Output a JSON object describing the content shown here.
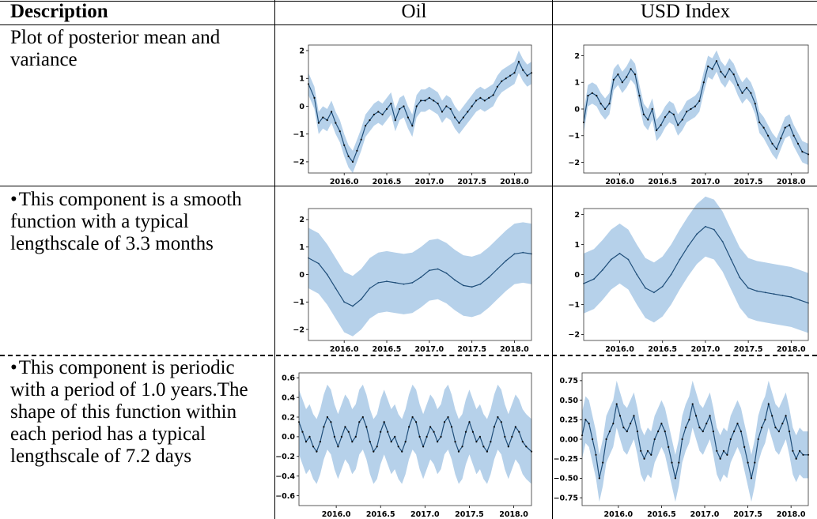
{
  "table": {
    "headers": [
      "Description",
      "Oil",
      "USD Index"
    ],
    "rows": [
      {
        "description": "Plot of posterior mean and variance",
        "bullet": false
      },
      {
        "description": "This component is a smooth function with a typical lengthscale of 3.3 months",
        "bullet": true
      },
      {
        "description": "This component is periodic with a period of 1.0 years.The shape of this function within each period has a typical lengthscale of 7.2 days",
        "bullet": true
      }
    ]
  },
  "colors": {
    "band": "#a9c9e6",
    "line": "#1f4e79",
    "points": "#0a0a0a"
  },
  "chart_data": [
    {
      "id": "oil-posterior",
      "type": "line",
      "panel": "Oil",
      "row": 1,
      "xlim": [
        2015.58,
        2018.2
      ],
      "ylim": [
        -2.4,
        2.2
      ],
      "xticks": [
        2016.0,
        2016.5,
        2017.0,
        2017.5,
        2018.0
      ],
      "xticklabels": [
        "2016.0",
        "2016.5",
        "2017.0",
        "2017.5",
        "2018.0"
      ],
      "yticks": [
        -2,
        -1,
        0,
        1,
        2
      ],
      "yticklabels": [
        "−2",
        "−1",
        "0",
        "1",
        "2"
      ],
      "band": 0.4,
      "has_points": true,
      "x": [
        2015.58,
        2015.65,
        2015.7,
        2015.75,
        2015.8,
        2015.85,
        2015.9,
        2015.95,
        2016.0,
        2016.05,
        2016.1,
        2016.15,
        2016.2,
        2016.25,
        2016.3,
        2016.35,
        2016.4,
        2016.45,
        2016.5,
        2016.55,
        2016.6,
        2016.65,
        2016.7,
        2016.75,
        2016.8,
        2016.85,
        2016.9,
        2016.95,
        2017.0,
        2017.05,
        2017.1,
        2017.15,
        2017.2,
        2017.25,
        2017.3,
        2017.35,
        2017.4,
        2017.45,
        2017.5,
        2017.55,
        2017.6,
        2017.65,
        2017.7,
        2017.75,
        2017.8,
        2017.85,
        2017.9,
        2017.95,
        2018.0,
        2018.05,
        2018.1,
        2018.15,
        2018.2
      ],
      "y": [
        0.8,
        0.3,
        -0.6,
        -0.4,
        -0.5,
        -0.2,
        -0.6,
        -0.9,
        -1.4,
        -1.8,
        -2.0,
        -1.6,
        -1.2,
        -0.7,
        -0.5,
        -0.3,
        -0.2,
        -0.3,
        -0.1,
        0.1,
        -0.5,
        -0.1,
        0.0,
        -0.4,
        -0.7,
        0.0,
        0.2,
        0.2,
        0.3,
        0.2,
        0.1,
        -0.2,
        0.0,
        -0.1,
        -0.4,
        -0.6,
        -0.4,
        -0.2,
        0.0,
        0.2,
        0.3,
        0.2,
        0.3,
        0.4,
        0.7,
        0.9,
        1.0,
        1.1,
        1.2,
        1.6,
        1.3,
        1.1,
        1.2
      ]
    },
    {
      "id": "usd-posterior",
      "type": "line",
      "panel": "USD Index",
      "row": 1,
      "xlim": [
        2015.58,
        2018.2
      ],
      "ylim": [
        -2.4,
        2.4
      ],
      "xticks": [
        2016.0,
        2016.5,
        2017.0,
        2017.5,
        2018.0
      ],
      "xticklabels": [
        "2016.0",
        "2016.5",
        "2017.0",
        "2017.5",
        "2018.0"
      ],
      "yticks": [
        -2,
        -1,
        0,
        1,
        2
      ],
      "yticklabels": [
        "−2",
        "−1",
        "0",
        "1",
        "2"
      ],
      "band": 0.4,
      "has_points": true,
      "x": [
        2015.58,
        2015.63,
        2015.68,
        2015.73,
        2015.78,
        2015.83,
        2015.88,
        2015.93,
        2015.98,
        2016.03,
        2016.08,
        2016.13,
        2016.18,
        2016.23,
        2016.28,
        2016.33,
        2016.38,
        2016.43,
        2016.48,
        2016.53,
        2016.58,
        2016.63,
        2016.68,
        2016.73,
        2016.78,
        2016.83,
        2016.88,
        2016.93,
        2016.98,
        2017.03,
        2017.08,
        2017.13,
        2017.18,
        2017.23,
        2017.28,
        2017.33,
        2017.38,
        2017.43,
        2017.48,
        2017.53,
        2017.58,
        2017.63,
        2017.68,
        2017.73,
        2017.78,
        2017.83,
        2017.88,
        2017.93,
        2017.98,
        2018.03,
        2018.08,
        2018.13,
        2018.2
      ],
      "y": [
        -0.5,
        0.5,
        0.6,
        0.5,
        0.2,
        0.0,
        0.2,
        1.1,
        1.3,
        1.0,
        1.2,
        1.5,
        1.3,
        0.5,
        -0.2,
        -0.4,
        0.0,
        -0.8,
        -0.6,
        -0.3,
        -0.1,
        -0.2,
        -0.6,
        -0.4,
        -0.1,
        0.0,
        0.1,
        0.3,
        1.0,
        1.6,
        1.5,
        1.8,
        1.4,
        1.2,
        1.5,
        1.3,
        0.9,
        0.6,
        0.8,
        0.6,
        0.2,
        -0.5,
        -0.7,
        -1.0,
        -1.3,
        -1.5,
        -1.1,
        -0.7,
        -0.6,
        -1.0,
        -1.3,
        -1.6,
        -1.7
      ]
    },
    {
      "id": "oil-smooth",
      "type": "line",
      "panel": "Oil",
      "row": 2,
      "xlim": [
        2015.58,
        2018.2
      ],
      "ylim": [
        -2.4,
        2.4
      ],
      "xticks": [
        2016.0,
        2016.5,
        2017.0,
        2017.5,
        2018.0
      ],
      "xticklabels": [
        "2016.0",
        "2016.5",
        "2017.0",
        "2017.5",
        "2018.0"
      ],
      "yticks": [
        -2,
        -1,
        0,
        1,
        2
      ],
      "yticklabels": [
        "−2",
        "−1",
        "0",
        "1",
        "2"
      ],
      "band": 1.1,
      "has_points": false,
      "x": [
        2015.58,
        2015.7,
        2015.8,
        2015.9,
        2016.0,
        2016.1,
        2016.2,
        2016.3,
        2016.4,
        2016.5,
        2016.6,
        2016.7,
        2016.8,
        2016.9,
        2017.0,
        2017.1,
        2017.2,
        2017.3,
        2017.4,
        2017.5,
        2017.6,
        2017.7,
        2017.8,
        2017.9,
        2018.0,
        2018.1,
        2018.2
      ],
      "y": [
        0.6,
        0.4,
        0.0,
        -0.5,
        -1.0,
        -1.15,
        -0.9,
        -0.5,
        -0.3,
        -0.25,
        -0.3,
        -0.35,
        -0.3,
        -0.1,
        0.15,
        0.2,
        0.05,
        -0.2,
        -0.4,
        -0.45,
        -0.35,
        -0.1,
        0.2,
        0.5,
        0.75,
        0.8,
        0.75
      ]
    },
    {
      "id": "usd-smooth",
      "type": "line",
      "panel": "USD Index",
      "row": 2,
      "xlim": [
        2015.58,
        2018.2
      ],
      "ylim": [
        -2.2,
        2.2
      ],
      "xticks": [
        2016.0,
        2016.5,
        2017.0,
        2017.5,
        2018.0
      ],
      "xticklabels": [
        "2016.0",
        "2016.5",
        "2017.0",
        "2017.5",
        "2018.0"
      ],
      "yticks": [
        -2,
        -1,
        0,
        1,
        2
      ],
      "yticklabels": [
        "−2",
        "−1",
        "0",
        "1",
        "2"
      ],
      "band": 1.0,
      "has_points": false,
      "x": [
        2015.58,
        2015.7,
        2015.8,
        2015.9,
        2016.0,
        2016.1,
        2016.2,
        2016.3,
        2016.4,
        2016.5,
        2016.6,
        2016.7,
        2016.8,
        2016.9,
        2017.0,
        2017.1,
        2017.2,
        2017.3,
        2017.4,
        2017.5,
        2017.6,
        2017.7,
        2017.8,
        2017.9,
        2018.0,
        2018.1,
        2018.2
      ],
      "y": [
        -0.3,
        -0.15,
        0.15,
        0.5,
        0.7,
        0.5,
        0.0,
        -0.45,
        -0.6,
        -0.4,
        0.0,
        0.5,
        0.95,
        1.35,
        1.6,
        1.5,
        1.1,
        0.5,
        -0.1,
        -0.45,
        -0.55,
        -0.6,
        -0.65,
        -0.7,
        -0.75,
        -0.85,
        -0.95
      ]
    },
    {
      "id": "oil-periodic",
      "type": "line",
      "panel": "Oil",
      "row": 3,
      "xlim": [
        2015.58,
        2018.2
      ],
      "ylim": [
        -0.7,
        0.65
      ],
      "xticks": [
        2016.0,
        2016.5,
        2017.0,
        2017.5,
        2018.0
      ],
      "xticklabels": [
        "2016.0",
        "2016.5",
        "2017.0",
        "2017.5",
        "2018.0"
      ],
      "yticks": [
        -0.6,
        -0.4,
        -0.2,
        0.0,
        0.2,
        0.4,
        0.6
      ],
      "yticklabels": [
        "−0.6",
        "−0.4",
        "−0.2",
        "0.0",
        "0.2",
        "0.4",
        "0.6"
      ],
      "band": 0.33,
      "has_points": true,
      "x": [
        2015.58,
        2015.62,
        2015.66,
        2015.7,
        2015.74,
        2015.78,
        2015.82,
        2015.86,
        2015.9,
        2015.94,
        2015.98,
        2016.02,
        2016.06,
        2016.1,
        2016.14,
        2016.18,
        2016.22,
        2016.26,
        2016.3,
        2016.34,
        2016.38,
        2016.42,
        2016.46,
        2016.5,
        2016.54,
        2016.58,
        2016.62,
        2016.66,
        2016.7,
        2016.74,
        2016.78,
        2016.82,
        2016.86,
        2016.9,
        2016.94,
        2016.98,
        2017.02,
        2017.06,
        2017.1,
        2017.14,
        2017.18,
        2017.22,
        2017.26,
        2017.3,
        2017.34,
        2017.38,
        2017.42,
        2017.46,
        2017.5,
        2017.54,
        2017.58,
        2017.62,
        2017.66,
        2017.7,
        2017.74,
        2017.78,
        2017.82,
        2017.86,
        2017.9,
        2017.94,
        2017.98,
        2018.02,
        2018.06,
        2018.1,
        2018.14,
        2018.2
      ],
      "y": [
        0.15,
        0.05,
        -0.05,
        0.0,
        -0.1,
        -0.15,
        -0.05,
        0.1,
        0.2,
        0.15,
        0.0,
        -0.1,
        0.0,
        0.1,
        0.05,
        -0.05,
        0.0,
        0.15,
        0.2,
        0.1,
        -0.05,
        -0.15,
        -0.1,
        0.05,
        0.15,
        0.05,
        -0.05,
        0.0,
        -0.1,
        -0.15,
        -0.05,
        0.1,
        0.2,
        0.15,
        0.0,
        -0.1,
        0.0,
        0.1,
        0.05,
        -0.05,
        0.0,
        0.15,
        0.2,
        0.1,
        -0.05,
        -0.15,
        -0.1,
        0.05,
        0.15,
        0.05,
        -0.05,
        0.0,
        -0.1,
        -0.15,
        -0.05,
        0.1,
        0.2,
        0.15,
        0.0,
        -0.1,
        0.0,
        0.1,
        0.05,
        -0.05,
        -0.1,
        -0.15
      ]
    },
    {
      "id": "usd-periodic",
      "type": "line",
      "panel": "USD Index",
      "row": 3,
      "xlim": [
        2015.58,
        2018.2
      ],
      "ylim": [
        -0.85,
        0.85
      ],
      "xticks": [
        2016.0,
        2016.5,
        2017.0,
        2017.5,
        2018.0
      ],
      "xticklabels": [
        "2016.0",
        "2016.5",
        "2017.0",
        "2017.5",
        "2018.0"
      ],
      "yticks": [
        -0.75,
        -0.5,
        -0.25,
        0.0,
        0.25,
        0.5,
        0.75
      ],
      "yticklabels": [
        "−0.75",
        "−0.50",
        "−0.25",
        "0.00",
        "0.25",
        "0.50",
        "0.75"
      ],
      "band": 0.3,
      "has_points": true,
      "x": [
        2015.58,
        2015.62,
        2015.66,
        2015.7,
        2015.74,
        2015.78,
        2015.82,
        2015.86,
        2015.9,
        2015.94,
        2015.98,
        2016.02,
        2016.06,
        2016.1,
        2016.14,
        2016.18,
        2016.22,
        2016.26,
        2016.3,
        2016.34,
        2016.38,
        2016.42,
        2016.46,
        2016.5,
        2016.54,
        2016.58,
        2016.62,
        2016.66,
        2016.7,
        2016.74,
        2016.78,
        2016.82,
        2016.86,
        2016.9,
        2016.94,
        2016.98,
        2017.02,
        2017.06,
        2017.1,
        2017.14,
        2017.18,
        2017.22,
        2017.26,
        2017.3,
        2017.34,
        2017.38,
        2017.42,
        2017.46,
        2017.5,
        2017.54,
        2017.58,
        2017.62,
        2017.66,
        2017.7,
        2017.74,
        2017.78,
        2017.82,
        2017.86,
        2017.9,
        2017.94,
        2017.98,
        2018.02,
        2018.06,
        2018.1,
        2018.14,
        2018.2
      ],
      "y": [
        0.05,
        0.25,
        0.2,
        0.0,
        -0.2,
        -0.5,
        -0.3,
        0.0,
        0.1,
        0.2,
        0.45,
        0.3,
        0.15,
        0.1,
        0.2,
        0.3,
        0.1,
        -0.15,
        -0.25,
        -0.15,
        -0.2,
        0.0,
        0.1,
        0.2,
        0.1,
        -0.1,
        -0.3,
        -0.5,
        -0.3,
        0.0,
        0.15,
        0.25,
        0.45,
        0.3,
        0.15,
        0.1,
        0.2,
        0.3,
        0.1,
        -0.15,
        -0.25,
        -0.15,
        -0.2,
        0.0,
        0.1,
        0.2,
        0.1,
        -0.1,
        -0.3,
        -0.5,
        -0.3,
        0.0,
        0.15,
        0.25,
        0.45,
        0.3,
        0.15,
        0.1,
        0.2,
        0.3,
        0.1,
        -0.15,
        -0.25,
        -0.15,
        -0.2,
        -0.2
      ]
    }
  ]
}
